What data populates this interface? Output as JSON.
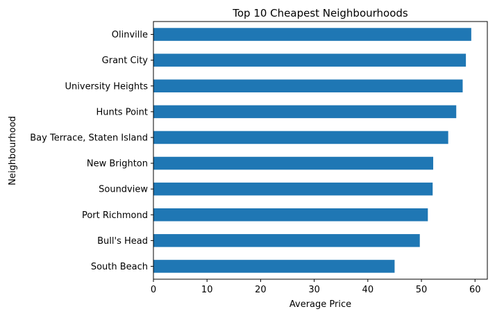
{
  "chart_data": {
    "type": "bar",
    "orientation": "horizontal",
    "title": "Top 10 Cheapest Neighbourhoods",
    "xlabel": "Average Price",
    "ylabel": "Neighbourhood",
    "categories": [
      "South Beach",
      "Bull's Head",
      "Port Richmond",
      "Soundview",
      "New Brighton",
      "Bay Terrace, Staten Island",
      "Hunts Point",
      "University Heights",
      "Grant City",
      "Olinville"
    ],
    "values": [
      45.0,
      49.7,
      51.2,
      52.1,
      52.2,
      55.0,
      56.5,
      57.7,
      58.3,
      59.3
    ],
    "xlim": [
      0,
      62.3
    ],
    "xticks": [
      0,
      10,
      20,
      30,
      40,
      50,
      60
    ],
    "grid": false,
    "bar_color": "#1f77b4"
  }
}
